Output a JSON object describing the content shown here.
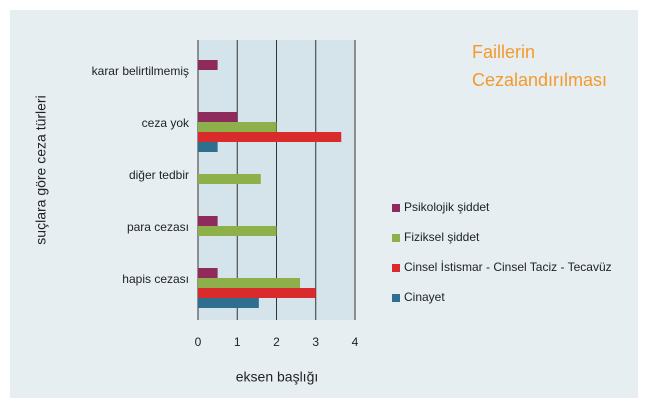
{
  "chart_data": {
    "type": "bar",
    "orientation": "horizontal",
    "title": "Faillerin Cezalandırılması",
    "x_label": "eksen başlığı",
    "y_label": "suçlara göre ceza türleri",
    "categories": [
      "karar belirtilmemiş",
      "ceza yok",
      "diğer tedbir",
      "para cezası",
      "hapis cezası"
    ],
    "series": [
      {
        "name": "Psikolojik şiddet",
        "color": "#8e2a5c",
        "values": [
          0.5,
          1,
          0,
          0.5,
          0.5
        ]
      },
      {
        "name": "Fiziksel şiddet",
        "color": "#8db04a",
        "values": [
          0,
          2,
          1.6,
          2,
          2.6
        ]
      },
      {
        "name": "Cinsel İstismar - Cinsel Taciz - Tecavüz",
        "color": "#d92b2b",
        "values": [
          0,
          3.65,
          0,
          0,
          3
        ]
      },
      {
        "name": "Cinayet",
        "color": "#2e6e8e",
        "values": [
          0,
          0.5,
          0,
          0,
          1.55
        ]
      }
    ],
    "xlim": [
      0,
      4
    ],
    "xticks": [
      0,
      1,
      2,
      3,
      4
    ],
    "grid": true,
    "legend": "right"
  }
}
